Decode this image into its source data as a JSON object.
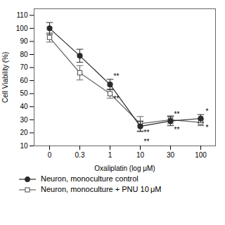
{
  "chart_data": {
    "type": "line",
    "xlabel": "Oxaliplatin (log μM)",
    "ylabel": "Cell Viability (%)",
    "categories": [
      "0",
      "0.3",
      "1",
      "10",
      "30",
      "100"
    ],
    "series": [
      {
        "name": "Neuron, monoculture control",
        "color": "#2a2a2a",
        "marker": "circle",
        "values": [
          100,
          79,
          57,
          25,
          29,
          31
        ],
        "yerr": [
          4.5,
          5,
          4,
          4,
          3.5,
          3
        ]
      },
      {
        "name": "Neuron, monoculture + PNU 10 μM",
        "color": "#666666",
        "marker": "square-open",
        "values": [
          93,
          66,
          50,
          27,
          30,
          28
        ],
        "yerr": [
          3.5,
          5.5,
          3.5,
          5.5,
          3,
          2.5
        ]
      }
    ],
    "ylim": [
      10,
      115
    ],
    "yticks": [
      10,
      20,
      30,
      40,
      50,
      60,
      70,
      80,
      90,
      100,
      110
    ],
    "annotations": [
      {
        "text": "**",
        "x": "1",
        "y": 63
      },
      {
        "text": "**",
        "x": "1",
        "y": 46
      },
      {
        "text": "**",
        "x": "10",
        "y": 20
      },
      {
        "text": "**",
        "x": "10",
        "y": 13
      },
      {
        "text": "**",
        "x": "30",
        "y": 34
      },
      {
        "text": "**",
        "x": "30",
        "y": 22
      },
      {
        "text": "*",
        "x": "100",
        "y": 36
      },
      {
        "text": "*",
        "x": "100",
        "y": 24
      }
    ],
    "legend": "lower left",
    "grid": false
  }
}
